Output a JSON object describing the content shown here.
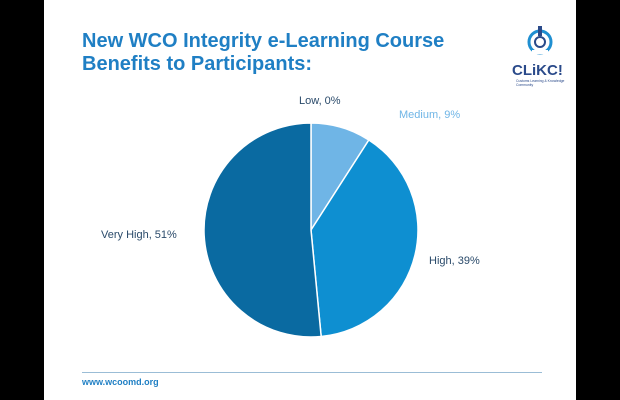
{
  "slide": {
    "title_line1": "New WCO Integrity e-Learning Course",
    "title_line2": "Benefits to Participants:",
    "footer_url": "www.wcoomd.org",
    "logo_text": "CLiKC!",
    "logo_subtext": "Customs Learning & Knowledge Community"
  },
  "colors": {
    "title": "#1f7fc4",
    "very_high": "#0a6aa1",
    "high": "#0e8fd1",
    "medium": "#6fb5e6",
    "low": "#a8d2f0",
    "border": "#ffffff"
  },
  "chart_data": {
    "type": "pie",
    "title": "",
    "slices": [
      {
        "label": "Low",
        "value": 0,
        "text": "Low, 0%",
        "color": "#a8d2f0"
      },
      {
        "label": "Medium",
        "value": 9,
        "text": "Medium, 9%",
        "color": "#6fb5e6"
      },
      {
        "label": "High",
        "value": 39,
        "text": "High, 39%",
        "color": "#0e8fd1"
      },
      {
        "label": "Very High",
        "value": 51,
        "text": "Very High, 51%",
        "color": "#0a6aa1"
      }
    ],
    "start_angle": "12 o'clock",
    "direction": "clockwise",
    "legend": "none"
  }
}
